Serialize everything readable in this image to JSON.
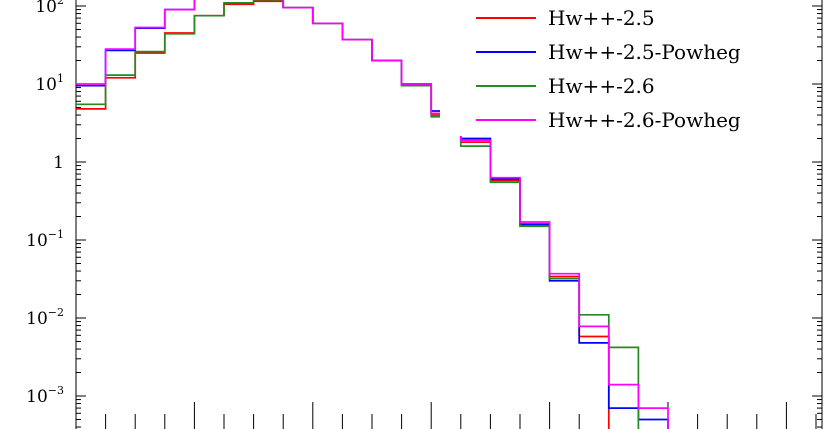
{
  "chart_data": {
    "type": "line",
    "step": true,
    "yscale": "log",
    "ylim": [
      0.0004,
      130
    ],
    "x_bins": 25,
    "y_ticks": [
      {
        "value": 100,
        "base": "10",
        "exp": "2"
      },
      {
        "value": 10,
        "base": "10",
        "exp": "1"
      },
      {
        "value": 1,
        "base": "1",
        "exp": ""
      },
      {
        "value": 0.1,
        "base": "10",
        "exp": "−1"
      },
      {
        "value": 0.01,
        "base": "10",
        "exp": "−2"
      },
      {
        "value": 0.001,
        "base": "10",
        "exp": "−3"
      }
    ],
    "legend_position": "top-right",
    "series": [
      {
        "name": "Hw++-2.5",
        "color": "#ff0000",
        "values": [
          4.8,
          12,
          25,
          45,
          75,
          105,
          115,
          95,
          60,
          37,
          20,
          9.5,
          4,
          1.8,
          0.58,
          0.155,
          0.034,
          0.0058,
          0,
          0,
          0,
          0,
          0,
          0,
          0
        ]
      },
      {
        "name": "Hw++-2.5-Powheg",
        "color": "#0000ff",
        "values": [
          9.5,
          27,
          52,
          90,
          130,
          140,
          135,
          95,
          60,
          37,
          20,
          10,
          4.5,
          2,
          0.6,
          0.16,
          0.03,
          0.0048,
          0.0007,
          0.0005,
          0,
          0,
          0,
          0,
          0
        ]
      },
      {
        "name": "Hw++-2.6",
        "color": "#228b22",
        "values": [
          5.5,
          13,
          26,
          44,
          75,
          110,
          120,
          95,
          60,
          37,
          20,
          9.5,
          3.8,
          1.6,
          0.55,
          0.15,
          0.032,
          0.011,
          0.0042,
          0,
          0,
          0,
          0,
          0,
          0
        ]
      },
      {
        "name": "Hw++-2.6-Powheg",
        "color": "#ff00ff",
        "values": [
          10,
          28,
          53,
          90,
          130,
          140,
          135,
          95,
          60,
          37,
          20,
          10,
          4.2,
          1.9,
          0.63,
          0.17,
          0.037,
          0.0078,
          0.0014,
          0.0007,
          0,
          0,
          0,
          0,
          0
        ]
      }
    ]
  }
}
